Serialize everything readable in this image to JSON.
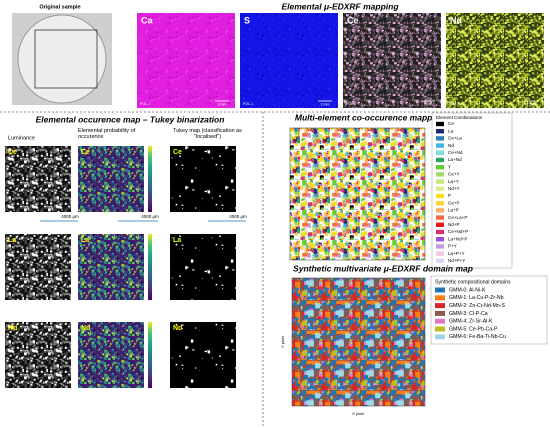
{
  "original_sample": {
    "label": "Original sample"
  },
  "edxrf_mapping": {
    "title": "Elemental μ-EDXRF mapping",
    "sample_id": "POL-1",
    "scale": "2 mm",
    "elements": [
      {
        "label": "Ca",
        "color": "#e21ee0"
      },
      {
        "label": "S",
        "color": "#1414e6"
      },
      {
        "label": "Ce",
        "color": "#e8a8d8"
      },
      {
        "label": "Nd",
        "color": "#c8d830"
      }
    ]
  },
  "occurrence_map": {
    "title": "Elemental occurence map – Tukey binarization",
    "columns": [
      "Luminance",
      "Elemental probability of occurence",
      "Tukey map (classification as \"localised\")"
    ],
    "rows": [
      "Ce",
      "La",
      "Nd"
    ],
    "scale": "4000 μm"
  },
  "cooccurrence": {
    "title": "Multi-element co-occurence mapping",
    "legend_title": "Element Combinations",
    "entries": [
      {
        "label": "Ce",
        "color": "#000000"
      },
      {
        "label": "La",
        "color": "#1a2a6c"
      },
      {
        "label": "Ce+La",
        "color": "#2c7fb8"
      },
      {
        "label": "Nd",
        "color": "#41b6e6"
      },
      {
        "label": "Ce+Nd",
        "color": "#7fdfe0"
      },
      {
        "label": "La+Nd",
        "color": "#2ca25f"
      },
      {
        "label": "Y",
        "color": "#66cc33"
      },
      {
        "label": "Ce+Y",
        "color": "#a6d96a"
      },
      {
        "label": "La+Y",
        "color": "#c7e77f"
      },
      {
        "label": "Nd+Y",
        "color": "#d9ef8b"
      },
      {
        "label": "P",
        "color": "#f2e01a"
      },
      {
        "label": "Ce+P",
        "color": "#fdd835"
      },
      {
        "label": "La+P",
        "color": "#fdae61"
      },
      {
        "label": "Ce+La+P",
        "color": "#f46d43"
      },
      {
        "label": "Nd+P",
        "color": "#e31a1c"
      },
      {
        "label": "Ce+Nd+P",
        "color": "#d7306a"
      },
      {
        "label": "La+Nd+P",
        "color": "#9e4fd6"
      },
      {
        "label": "P+Y",
        "color": "#c39be0"
      },
      {
        "label": "La+P+Y",
        "color": "#f2c4e6"
      },
      {
        "label": "Nd+P+Y",
        "color": "#e0d4f5"
      }
    ]
  },
  "domain_map": {
    "title": "Synthetic multivariate μ-EDXRF domain map",
    "legend_title": "Synthetic compositional domains",
    "x_label": "X pixel",
    "y_label": "Y pixel",
    "entries": [
      {
        "label": "GMM-0: Al-Ni-K",
        "color": "#1f77b4"
      },
      {
        "label": "GMM-1: La-Cu-P-Zr-Nb",
        "color": "#ff7f0e"
      },
      {
        "label": "GMM-2: Zn-Cr-Nd-Mn-S",
        "color": "#d62728"
      },
      {
        "label": "GMM-3: Cl-P-Ca",
        "color": "#8c564b"
      },
      {
        "label": "GMM-4: Zr-Sr-Al-K",
        "color": "#e377c2"
      },
      {
        "label": "GMM-5: Ce-Pb-Ca-P",
        "color": "#bcbd22"
      },
      {
        "label": "GMM-6: Fe-Ba-Ti-Nb-Cu",
        "color": "#9edae5"
      }
    ]
  }
}
